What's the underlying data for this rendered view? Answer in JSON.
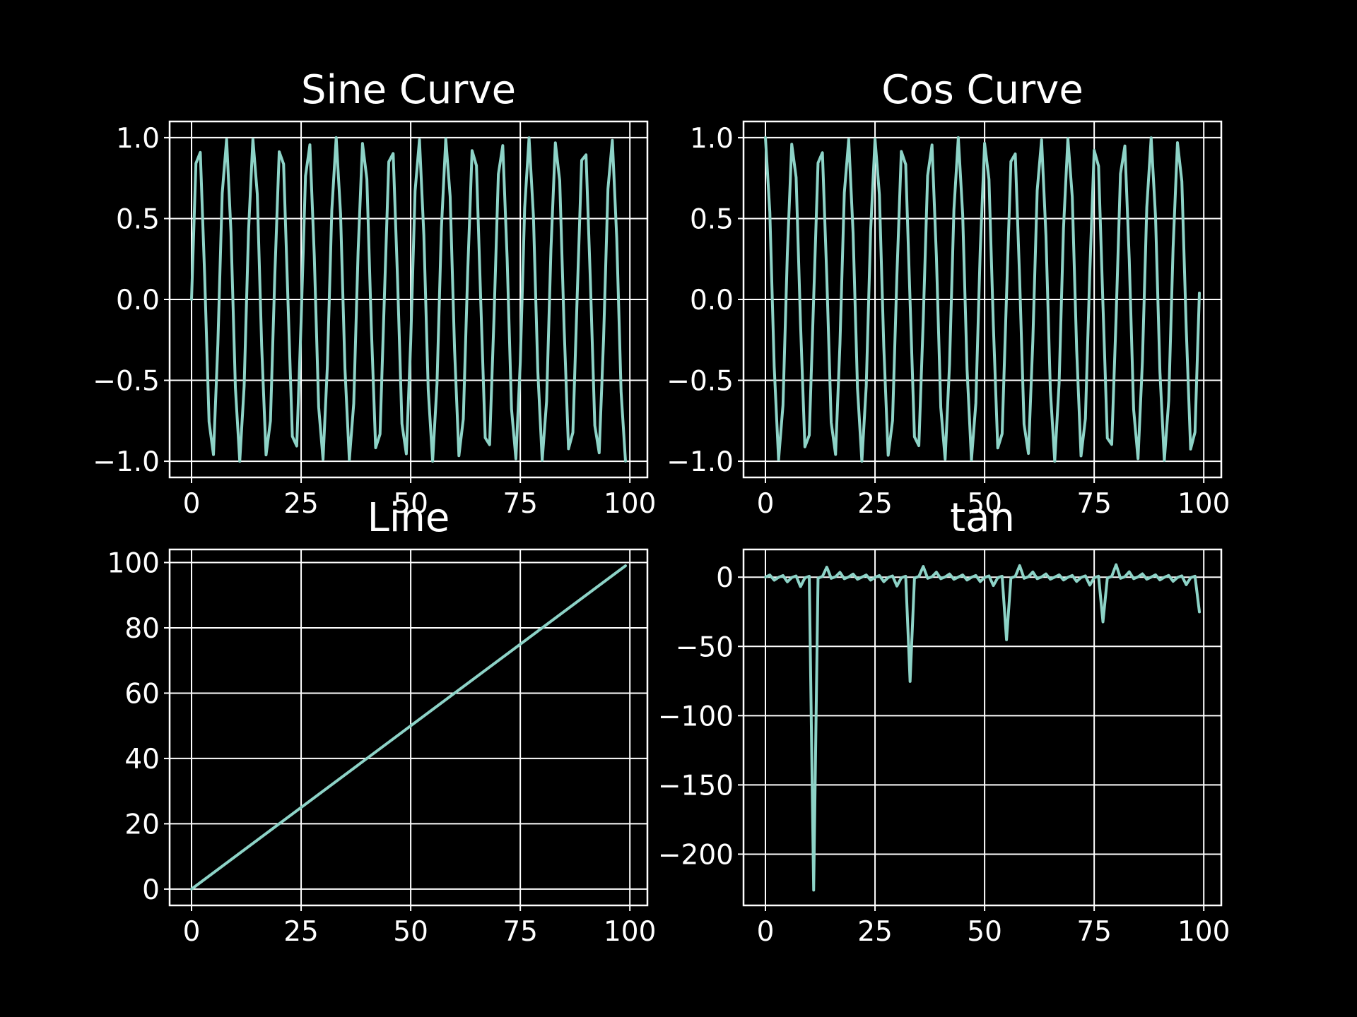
{
  "figure": {
    "background": "#000000",
    "foreground": "#ffffff",
    "series_color": "#8dd3c7",
    "layout": "2x2 grid"
  },
  "chart_data": [
    {
      "type": "line",
      "title": "Sine Curve",
      "xlabel": "",
      "ylabel": "",
      "xlim": [
        -5,
        104
      ],
      "ylim": [
        -1.1,
        1.1
      ],
      "xticks": [
        0,
        25,
        50,
        75,
        100
      ],
      "xtick_labels": [
        "0",
        "25",
        "50",
        "75",
        "100"
      ],
      "yticks": [
        1.0,
        0.5,
        0.0,
        -0.5,
        -1.0
      ],
      "ytick_labels": [
        "1.0",
        "0.5",
        "0.0",
        "−0.5",
        "−1.0"
      ],
      "grid": true,
      "series": [
        {
          "function": "sin",
          "x_range": [
            0,
            99
          ],
          "x_step": 1,
          "y": [
            0,
            0.841,
            0.909,
            0.141,
            -0.757,
            -0.959,
            -0.279,
            0.657,
            0.989,
            0.412,
            -0.544,
            -1.0,
            -0.537,
            0.42,
            0.991,
            0.65,
            -0.288,
            -0.961,
            -0.751,
            0.149,
            0.913,
            0.837,
            -0.009,
            -0.846,
            -0.906,
            -0.132,
            0.763,
            0.956,
            0.271,
            -0.664,
            -0.988,
            -0.404,
            0.551,
            1.0,
            0.529,
            -0.428,
            -0.992,
            -0.644,
            0.296,
            0.964,
            0.745,
            -0.158,
            -0.917,
            -0.832,
            0.018,
            0.851,
            0.902,
            0.124,
            -0.768,
            -0.954,
            -0.262,
            0.67,
            0.987,
            0.396,
            -0.559,
            -1.0,
            -0.521,
            0.436,
            0.993,
            0.637,
            -0.305,
            -0.966,
            -0.739,
            0.167,
            0.92,
            0.827,
            -0.027,
            -0.855,
            -0.898,
            -0.115,
            0.774,
            0.951,
            0.254,
            -0.677,
            -0.985,
            -0.388,
            0.566,
            0.999,
            0.514,
            -0.444,
            -0.994,
            -0.63,
            0.313,
            0.968,
            0.733,
            -0.176,
            -0.923,
            -0.822,
            0.035,
            0.86,
            0.894,
            0.106,
            -0.779,
            -0.948,
            -0.245,
            0.683,
            0.984,
            0.38,
            -0.573,
            -0.999
          ]
        }
      ]
    },
    {
      "type": "line",
      "title": "Cos Curve",
      "xlabel": "",
      "ylabel": "",
      "xlim": [
        -5,
        104
      ],
      "ylim": [
        -1.1,
        1.1
      ],
      "xticks": [
        0,
        25,
        50,
        75,
        100
      ],
      "xtick_labels": [
        "0",
        "25",
        "50",
        "75",
        "100"
      ],
      "yticks": [
        1.0,
        0.5,
        0.0,
        -0.5,
        -1.0
      ],
      "ytick_labels": [
        "1.0",
        "0.5",
        "0.0",
        "−0.5",
        "−1.0"
      ],
      "grid": true,
      "series": [
        {
          "function": "cos",
          "x_range": [
            0,
            99
          ],
          "x_step": 1,
          "y": [
            1.0,
            0.54,
            -0.416,
            -0.99,
            -0.654,
            0.284,
            0.96,
            0.754,
            -0.146,
            -0.911,
            -0.839,
            0.004,
            0.844,
            0.907,
            0.137,
            -0.76,
            -0.958,
            -0.275,
            0.66,
            0.989,
            0.408,
            -0.548,
            -1.0,
            -0.533,
            0.424,
            0.991,
            0.647,
            -0.292,
            -0.963,
            -0.748,
            0.154,
            0.915,
            0.834,
            -0.013,
            -0.849,
            -0.904,
            -0.128,
            0.765,
            0.955,
            0.267,
            -0.667,
            -0.987,
            -0.4,
            0.555,
            1.0,
            0.525,
            -0.432,
            -0.992,
            -0.641,
            0.3,
            0.965,
            0.742,
            -0.162,
            -0.918,
            -0.83,
            0.022,
            0.853,
            0.9,
            0.119,
            -0.771,
            -0.952,
            -0.258,
            0.674,
            0.986,
            0.392,
            -0.562,
            -1.0,
            -0.518,
            0.44,
            0.994,
            0.634,
            -0.309,
            -0.967,
            -0.736,
            0.171,
            0.922,
            0.824,
            -0.031,
            -0.857,
            -0.896,
            -0.11,
            0.776,
            0.949,
            0.249,
            -0.68,
            -0.984,
            -0.384,
            0.569,
            0.999,
            0.51,
            -0.448,
            -0.995,
            -0.627,
            0.317,
            0.969,
            0.73,
            -0.18,
            -0.925,
            -0.82,
            0.04
          ]
        }
      ]
    },
    {
      "type": "line",
      "title": "Line",
      "xlabel": "",
      "ylabel": "",
      "xlim": [
        -5,
        104
      ],
      "ylim": [
        -5,
        104
      ],
      "xticks": [
        0,
        25,
        50,
        75,
        100
      ],
      "xtick_labels": [
        "0",
        "25",
        "50",
        "75",
        "100"
      ],
      "yticks": [
        100,
        80,
        60,
        40,
        20,
        0
      ],
      "ytick_labels": [
        "100",
        "80",
        "60",
        "40",
        "20",
        "0"
      ],
      "grid": true,
      "series": [
        {
          "function": "linear",
          "x_range": [
            0,
            99
          ],
          "x_step": 1,
          "y": [
            0,
            99
          ]
        }
      ]
    },
    {
      "type": "line",
      "title": "tan",
      "xlabel": "",
      "ylabel": "",
      "xlim": [
        -5,
        104
      ],
      "ylim": [
        -237,
        20
      ],
      "xticks": [
        0,
        25,
        50,
        75,
        100
      ],
      "xtick_labels": [
        "0",
        "25",
        "50",
        "75",
        "100"
      ],
      "yticks": [
        0,
        -50,
        -100,
        -150,
        -200
      ],
      "ytick_labels": [
        "0",
        "−50",
        "−100",
        "−150",
        "−200"
      ],
      "grid": true,
      "series": [
        {
          "function": "tan",
          "x_range": [
            0,
            99
          ],
          "x_step": 1,
          "y": [
            0,
            1.557,
            -2.185,
            -0.143,
            1.158,
            -3.381,
            -0.291,
            0.871,
            -6.8,
            -0.452,
            0.648,
            -225.951,
            -0.636,
            0.463,
            7.244,
            -0.855,
            0.3,
            3.494,
            -1.137,
            0.151,
            2.237,
            -1.528,
            0.009,
            1.588,
            -2.135,
            -0.134,
            1.18,
            -3.274,
            -0.282,
            0.887,
            -6.405,
            -0.441,
            0.662,
            -75.313,
            -0.624,
            0.474,
            7.75,
            -0.839,
            0.309,
            3.61,
            -1.117,
            0.16,
            2.29,
            -1.498,
            0.018,
            1.62,
            -2.088,
            -0.124,
            1.203,
            -3.174,
            -0.272,
            0.904,
            -6.053,
            -0.431,
            0.675,
            -45.183,
            -0.612,
            0.486,
            8.331,
            -0.823,
            0.32,
            3.734,
            -1.098,
            0.169,
            2.346,
            -1.469,
            0.027,
            1.652,
            -2.043,
            -0.115,
            1.226,
            -3.08,
            -0.263,
            0.921,
            -5.737,
            -0.421,
            0.688,
            -32.268,
            -0.6,
            0.498,
            9.004,
            -0.808,
            0.33,
            3.866,
            -1.079,
            0.178,
            2.403,
            -1.44,
            0.035,
            1.685,
            -1.999,
            -0.106,
            1.249,
            -2.991,
            -0.254,
            0.938,
            -5.451,
            -0.412,
            0.702,
            -25.092
          ]
        }
      ]
    }
  ]
}
